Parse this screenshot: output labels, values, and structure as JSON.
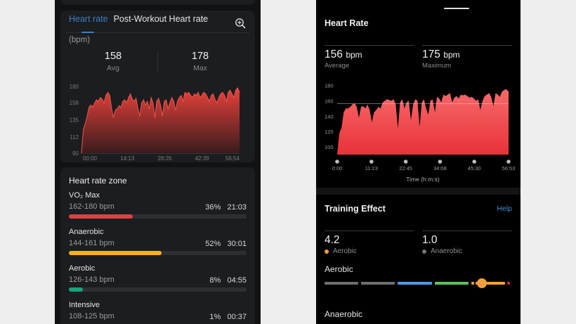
{
  "left": {
    "tabs": [
      {
        "label": "Heart rate",
        "active": true
      },
      {
        "label": "Post-Workout Heart rate",
        "active": false
      }
    ],
    "unit": "(bpm)",
    "stats": [
      {
        "value": "158",
        "label": "Avg"
      },
      {
        "value": "178",
        "label": "Max"
      }
    ],
    "zones_title": "Heart rate zone",
    "zones": [
      {
        "name": "VO₂ Max",
        "range": "162-180 bpm",
        "pct": "36%",
        "time": "21:03",
        "fill": 36,
        "color": "#e04040"
      },
      {
        "name": "Anaerobic",
        "range": "144-161 bpm",
        "pct": "52%",
        "time": "30:01",
        "fill": 52,
        "color": "#f5b020"
      },
      {
        "name": "Aerobic",
        "range": "126-143 bpm",
        "pct": "8%",
        "time": "04:55",
        "fill": 8,
        "color": "#1aa37a"
      },
      {
        "name": "Intensive",
        "range": "108-125 bpm",
        "pct": "1%",
        "time": "00:37",
        "fill": 1,
        "color": "#3d7fc0"
      }
    ]
  },
  "right": {
    "title": "Heart Rate",
    "stats": [
      {
        "value": "156",
        "unit": "bpm",
        "label": "Average"
      },
      {
        "value": "175",
        "unit": "bpm",
        "label": "Maximum"
      }
    ],
    "training_effect": {
      "title": "Training Effect",
      "help": "Help",
      "items": [
        {
          "value": "4.2",
          "label": "Aerobic",
          "dot": "#f5a03c"
        },
        {
          "value": "1.0",
          "label": "Anaerobic",
          "dot": "#777777"
        }
      ],
      "aerobic_label": "Aerobic",
      "anaerobic_label": "Anaerobic",
      "scale_colors": [
        "#6e6e6e",
        "#6e6e6e",
        "#4a9ae8",
        "#5cc35c",
        "#f5a03c",
        "#e03040"
      ],
      "aerobic_value": 4.2
    }
  },
  "chart_data": [
    {
      "type": "area",
      "title": "Heart rate",
      "ylabel": "(bpm)",
      "xlabel": "",
      "yticks": [
        90,
        112,
        135,
        158,
        180
      ],
      "ylim": [
        90,
        180
      ],
      "xticks": [
        "00:00",
        "14:13",
        "28:26",
        "42:39",
        "56:54"
      ],
      "grid": false,
      "color": "#e8413b",
      "values": [
        90,
        122,
        130,
        140,
        152,
        155,
        152,
        158,
        162,
        160,
        165,
        163,
        158,
        168,
        172,
        168,
        150,
        138,
        148,
        150,
        154,
        152,
        160,
        162,
        158,
        165,
        170,
        163,
        160,
        164,
        150,
        140,
        158,
        162,
        155,
        160,
        150,
        165,
        158,
        138,
        160,
        164,
        155,
        140,
        160,
        162,
        150,
        158,
        165,
        160,
        148,
        160,
        165,
        168,
        160,
        172,
        170,
        172,
        168,
        165,
        170,
        168,
        172,
        165,
        168,
        172,
        170,
        165,
        160,
        168,
        170,
        162,
        158,
        165,
        170,
        172,
        168,
        160,
        172,
        175,
        170,
        165,
        175,
        178,
        172
      ]
    },
    {
      "type": "area",
      "title": "Heart Rate",
      "xlabel": "Time (h:m:s)",
      "ylabel": "",
      "yticks": [
        100,
        120,
        140,
        160,
        180
      ],
      "ylim": [
        90,
        185
      ],
      "xticks": [
        "0:00",
        "11:23",
        "22:45",
        "34:08",
        "45:30",
        "56:53"
      ],
      "reference_line": 156,
      "grid": false,
      "color": "#f04a4c",
      "values": [
        90,
        118,
        125,
        145,
        150,
        150,
        152,
        155,
        157,
        152,
        138,
        152,
        153,
        150,
        155,
        148,
        132,
        145,
        148,
        152,
        150,
        158,
        160,
        162,
        161,
        160,
        162,
        155,
        124,
        158,
        162,
        150,
        158,
        160,
        135,
        155,
        162,
        160,
        126,
        158,
        162,
        150,
        142,
        160,
        162,
        145,
        165,
        163,
        158,
        168,
        166,
        168,
        170,
        158,
        164,
        166,
        163,
        168,
        167,
        168,
        166,
        164,
        165,
        163,
        160,
        162,
        148,
        160,
        166,
        168,
        170,
        165,
        153,
        170,
        168,
        165,
        172,
        174,
        175,
        172
      ]
    }
  ]
}
